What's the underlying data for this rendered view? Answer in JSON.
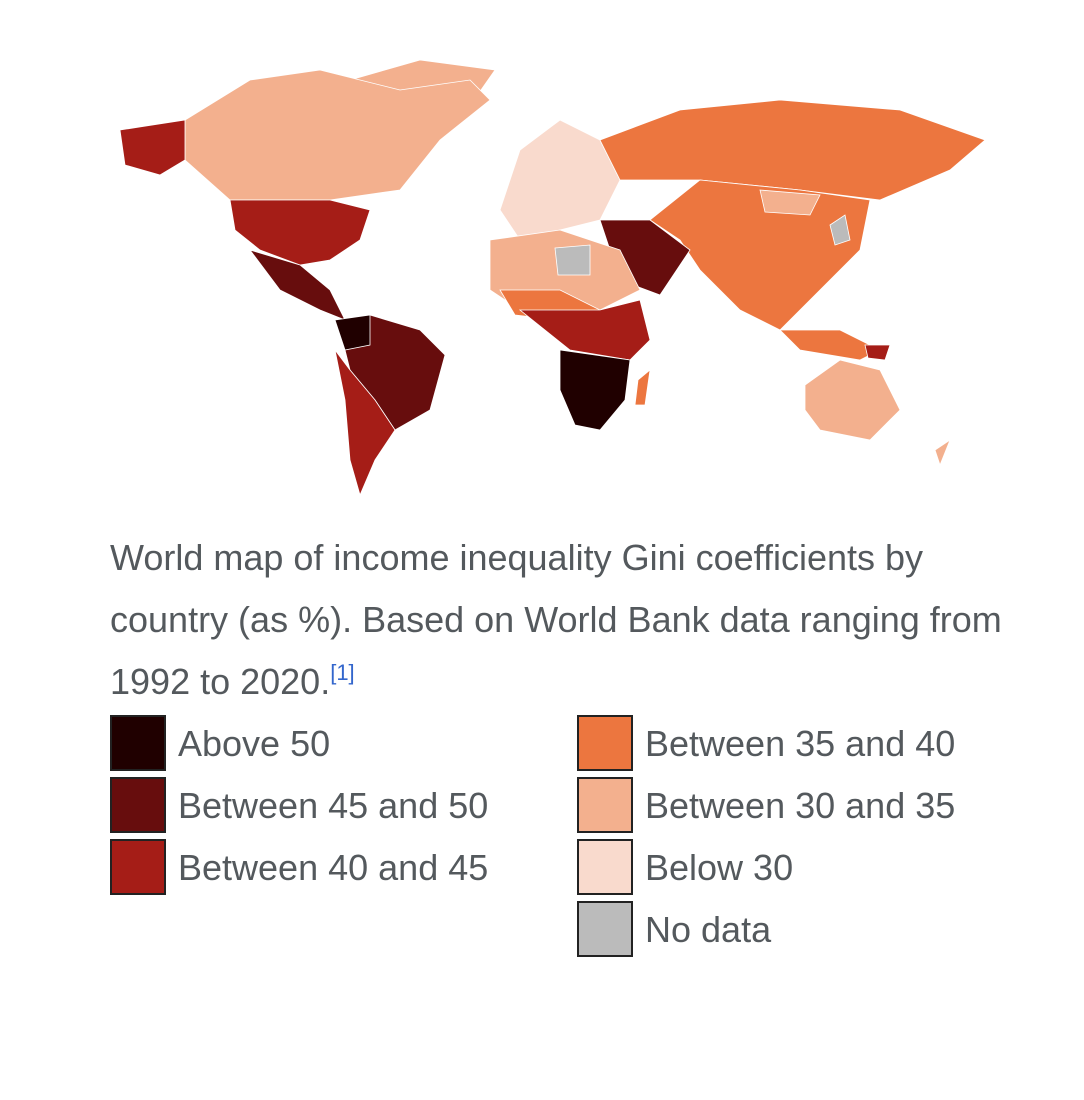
{
  "caption": {
    "text": "World map of income inequality Gini coefficients by country (as %). Based on World Bank data ranging from 1992 to 2020.",
    "reference": "[1]"
  },
  "legend": [
    {
      "label": "Above 50",
      "color": "#200000"
    },
    {
      "label": "Between 45 and 50",
      "color": "#670d0d"
    },
    {
      "label": "Between 40 and 45",
      "color": "#a51d17"
    },
    {
      "label": "Between 35 and 40",
      "color": "#ec763f"
    },
    {
      "label": "Between 30 and 35",
      "color": "#f3b08e"
    },
    {
      "label": "Below 30",
      "color": "#f9dacd"
    },
    {
      "label": "No data",
      "color": "#bbbbbb"
    }
  ]
}
